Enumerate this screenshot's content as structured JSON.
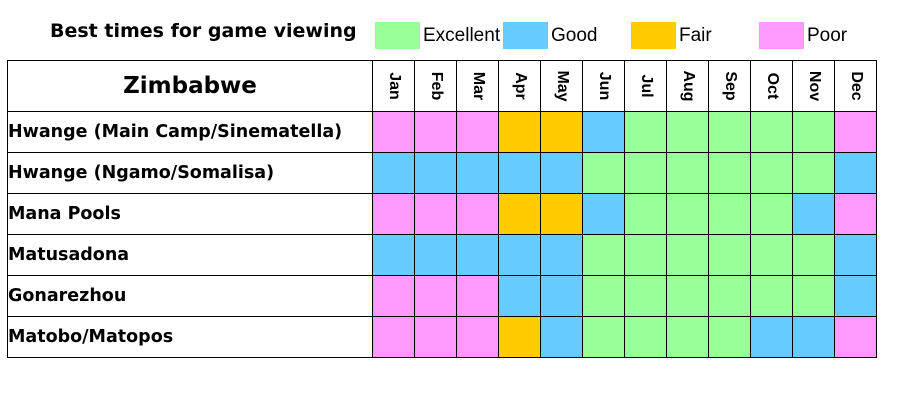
{
  "title": "Best times for game viewing",
  "legend": [
    {
      "label": "Excellent",
      "color": "#99ff99"
    },
    {
      "label": "Good",
      "color": "#66ccff"
    },
    {
      "label": "Fair",
      "color": "#ffcc00"
    },
    {
      "label": "Poor",
      "color": "#ff99ff"
    }
  ],
  "chart_data": {
    "type": "heatmap",
    "region": "Zimbabwe",
    "months": [
      "Jan",
      "Feb",
      "Mar",
      "Apr",
      "May",
      "Jun",
      "Jul",
      "Aug",
      "Sep",
      "Oct",
      "Nov",
      "Dec"
    ],
    "rows": [
      {
        "name": "Hwange (Main Camp/Sinematella)",
        "ratings": [
          "Poor",
          "Poor",
          "Poor",
          "Fair",
          "Fair",
          "Good",
          "Excellent",
          "Excellent",
          "Excellent",
          "Excellent",
          "Excellent",
          "Poor"
        ]
      },
      {
        "name": "Hwange (Ngamo/Somalisa)",
        "ratings": [
          "Good",
          "Good",
          "Good",
          "Good",
          "Good",
          "Excellent",
          "Excellent",
          "Excellent",
          "Excellent",
          "Excellent",
          "Excellent",
          "Good"
        ]
      },
      {
        "name": "Mana Pools",
        "ratings": [
          "Poor",
          "Poor",
          "Poor",
          "Fair",
          "Fair",
          "Good",
          "Excellent",
          "Excellent",
          "Excellent",
          "Excellent",
          "Good",
          "Poor"
        ]
      },
      {
        "name": "Matusadona",
        "ratings": [
          "Good",
          "Good",
          "Good",
          "Good",
          "Good",
          "Excellent",
          "Excellent",
          "Excellent",
          "Excellent",
          "Excellent",
          "Excellent",
          "Good"
        ]
      },
      {
        "name": "Gonarezhou",
        "ratings": [
          "Poor",
          "Poor",
          "Poor",
          "Good",
          "Good",
          "Excellent",
          "Excellent",
          "Excellent",
          "Excellent",
          "Excellent",
          "Excellent",
          "Good"
        ]
      },
      {
        "name": "Matobo/Matopos",
        "ratings": [
          "Poor",
          "Poor",
          "Poor",
          "Fair",
          "Good",
          "Excellent",
          "Excellent",
          "Excellent",
          "Excellent",
          "Good",
          "Good",
          "Poor"
        ]
      }
    ]
  }
}
